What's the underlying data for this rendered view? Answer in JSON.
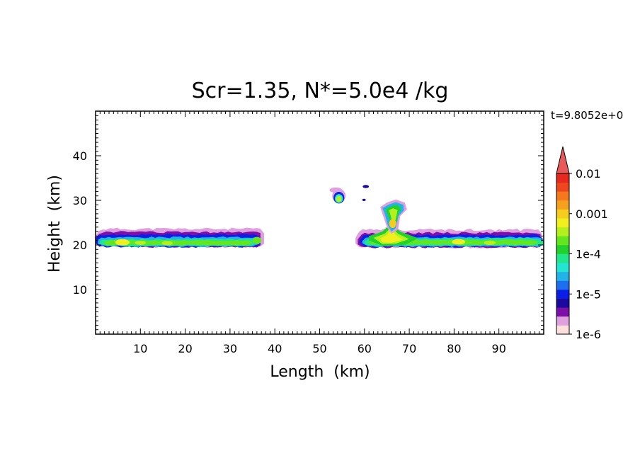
{
  "chart_data": {
    "type": "heatmap",
    "title": "Scr=1.35, N*=5.0e4 /kg",
    "time_label": "t=9.8052e+0",
    "xlabel": "Length  (km)",
    "ylabel": "Height  (km)",
    "xlim": [
      0,
      100
    ],
    "ylim": [
      0,
      50
    ],
    "x_ticks": [
      10,
      20,
      30,
      40,
      50,
      60,
      70,
      80,
      90
    ],
    "x_tick_labels": [
      "10",
      "20",
      "30",
      "40",
      "50",
      "60",
      "70",
      "80",
      "90"
    ],
    "y_ticks": [
      10,
      20,
      30,
      40
    ],
    "y_tick_labels": [
      "10",
      "20",
      "30",
      "40"
    ],
    "colorbar": {
      "scale": "log",
      "range": [
        1e-06,
        0.01
      ],
      "labels": [
        "0.01",
        "0.001",
        "1e-4",
        "1e-5",
        "1e-6"
      ],
      "colors": [
        "#fde0dc",
        "#e0a0e0",
        "#7b0fa8",
        "#1a0aa0",
        "#0a1ee6",
        "#1e6ef0",
        "#22b4e6",
        "#22e6d2",
        "#22e68c",
        "#22d22c",
        "#64e61e",
        "#b4f01e",
        "#f0f01e",
        "#f5cd1e",
        "#f5a01e",
        "#f5781e",
        "#f0461e",
        "#e6281e",
        "#e85a5a"
      ]
    },
    "regions": [
      {
        "name": "left layer",
        "x": [
          0,
          38
        ],
        "y_center": 20.5,
        "peak_level": "1e-3",
        "note": "thin horizontal layer at ~19-23 km"
      },
      {
        "name": "right layer",
        "x": [
          58,
          100
        ],
        "y_center": 20.5,
        "peak_level": "1e-3",
        "note": "thin horizontal layer at ~19-23 km"
      },
      {
        "name": "plume",
        "x": [
          63,
          69
        ],
        "y": [
          22,
          30
        ],
        "peak_level": "1e-3"
      },
      {
        "name": "isolated cell",
        "x": [
          52,
          56
        ],
        "y": [
          29,
          33
        ],
        "peak_level": "1e-4"
      }
    ]
  }
}
